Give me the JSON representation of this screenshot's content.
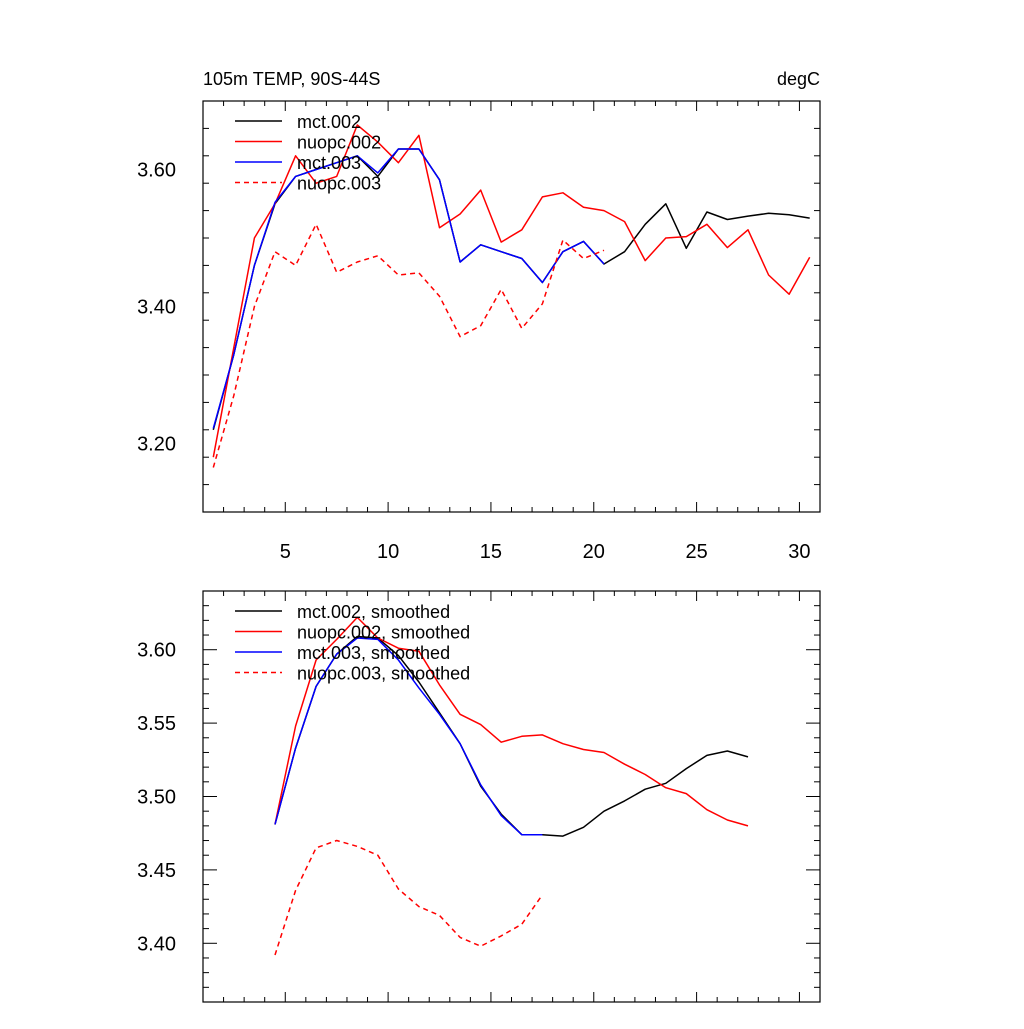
{
  "colors": {
    "mct_002": "#000000",
    "nuopc": "#ff0000",
    "mct_003": "#0000ff",
    "axis": "#000000"
  },
  "chart_data": [
    {
      "type": "line",
      "title_left": "105m TEMP, 90S-44S",
      "title_right": "degC",
      "xlim": [
        1,
        31
      ],
      "ylim": [
        3.1,
        3.7
      ],
      "xticks": [
        5,
        10,
        15,
        20,
        25,
        30
      ],
      "xtick_labels": [
        "5",
        "10",
        "15",
        "20",
        "25",
        "30"
      ],
      "yticks": [
        3.2,
        3.4,
        3.6
      ],
      "ytick_labels": [
        "3.20",
        "3.40",
        "3.60"
      ],
      "legend_position": "top-left",
      "series": [
        {
          "name": "mct.002",
          "color": "#000000",
          "dash": "solid",
          "x": [
            1.5,
            2.5,
            3.5,
            4.5,
            5.5,
            6.5,
            7.5,
            8.5,
            9.5,
            10.5,
            11.5,
            12.5,
            13.5,
            14.5,
            15.5,
            16.5,
            17.5,
            18.5,
            19.5,
            20.5,
            21.5,
            22.5,
            23.5,
            24.5,
            25.5,
            26.5,
            27.5,
            28.5,
            29.5,
            30.5
          ],
          "y": [
            3.22,
            3.33,
            3.46,
            3.55,
            3.59,
            3.6,
            3.61,
            3.62,
            3.59,
            3.63,
            3.63,
            3.585,
            3.465,
            3.49,
            3.48,
            3.47,
            3.435,
            3.48,
            3.495,
            3.462,
            3.48,
            3.52,
            3.55,
            3.485,
            3.538,
            3.527,
            3.532,
            3.536,
            3.534,
            3.529
          ]
        },
        {
          "name": "nuopc.002",
          "color": "#ff0000",
          "dash": "solid",
          "x": [
            1.5,
            2.5,
            3.5,
            4.5,
            5.5,
            6.5,
            7.5,
            8.5,
            9.5,
            10.5,
            11.5,
            12.5,
            13.5,
            14.5,
            15.5,
            16.5,
            17.5,
            18.5,
            19.5,
            20.5,
            21.5,
            22.5,
            23.5,
            24.5,
            25.5,
            26.5,
            27.5,
            28.5,
            29.5,
            30.5
          ],
          "y": [
            3.18,
            3.34,
            3.5,
            3.55,
            3.62,
            3.58,
            3.59,
            3.665,
            3.64,
            3.61,
            3.65,
            3.515,
            3.535,
            3.57,
            3.494,
            3.512,
            3.56,
            3.566,
            3.545,
            3.54,
            3.524,
            3.467,
            3.5,
            3.502,
            3.52,
            3.486,
            3.512,
            3.446,
            3.418,
            3.472
          ]
        },
        {
          "name": "mct.003",
          "color": "#0000ff",
          "dash": "solid",
          "x": [
            1.5,
            2.5,
            3.5,
            4.5,
            5.5,
            6.5,
            7.5,
            8.5,
            9.5,
            10.5,
            11.5,
            12.5,
            13.5,
            14.5,
            15.5,
            16.5,
            17.5,
            18.5,
            19.5,
            20.5
          ],
          "y": [
            3.222,
            3.33,
            3.46,
            3.552,
            3.59,
            3.6,
            3.61,
            3.62,
            3.595,
            3.63,
            3.63,
            3.585,
            3.465,
            3.49,
            3.48,
            3.47,
            3.435,
            3.48,
            3.495,
            3.462
          ]
        },
        {
          "name": "nuopc.003",
          "color": "#ff0000",
          "dash": "dashed",
          "x": [
            1.5,
            2.5,
            3.5,
            4.5,
            5.5,
            6.5,
            7.5,
            8.5,
            9.5,
            10.5,
            11.5,
            12.5,
            13.5,
            14.5,
            15.5,
            16.5,
            17.5,
            18.5,
            19.5,
            20.5
          ],
          "y": [
            3.165,
            3.27,
            3.4,
            3.48,
            3.46,
            3.52,
            3.45,
            3.465,
            3.474,
            3.446,
            3.449,
            3.415,
            3.356,
            3.372,
            3.425,
            3.368,
            3.404,
            3.497,
            3.47,
            3.482
          ]
        }
      ]
    },
    {
      "type": "line",
      "xlim": [
        1,
        31
      ],
      "ylim": [
        3.36,
        3.64
      ],
      "xticks": [
        5,
        10,
        15,
        20,
        25,
        30
      ],
      "yticks": [
        3.4,
        3.45,
        3.5,
        3.55,
        3.6
      ],
      "ytick_labels": [
        "3.40",
        "3.45",
        "3.50",
        "3.55",
        "3.60"
      ],
      "legend_position": "top-left",
      "series": [
        {
          "name": "mct.002, smoothed",
          "color": "#000000",
          "dash": "solid",
          "x": [
            4.5,
            5.5,
            6.5,
            7.5,
            8.5,
            9.5,
            10.5,
            11.5,
            12.5,
            13.5,
            14.5,
            15.5,
            16.5,
            17.5,
            18.5,
            19.5,
            20.5,
            21.5,
            22.5,
            23.5,
            24.5,
            25.5,
            26.5,
            27.5
          ],
          "y": [
            3.481,
            3.533,
            3.575,
            3.597,
            3.609,
            3.608,
            3.596,
            3.578,
            3.557,
            3.536,
            3.507,
            3.488,
            3.474,
            3.474,
            3.473,
            3.479,
            3.49,
            3.497,
            3.505,
            3.509,
            3.519,
            3.528,
            3.531,
            3.527
          ]
        },
        {
          "name": "nuopc.002, smoothed",
          "color": "#ff0000",
          "dash": "solid",
          "x": [
            4.5,
            5.5,
            6.5,
            7.5,
            8.5,
            9.5,
            10.5,
            11.5,
            12.5,
            13.5,
            14.5,
            15.5,
            16.5,
            17.5,
            18.5,
            19.5,
            20.5,
            21.5,
            22.5,
            23.5,
            24.5,
            25.5,
            26.5,
            27.5
          ],
          "y": [
            3.481,
            3.548,
            3.593,
            3.607,
            3.622,
            3.608,
            3.601,
            3.599,
            3.576,
            3.556,
            3.549,
            3.537,
            3.541,
            3.542,
            3.536,
            3.532,
            3.53,
            3.522,
            3.515,
            3.506,
            3.502,
            3.491,
            3.484,
            3.48
          ]
        },
        {
          "name": "mct.003, smoothed",
          "color": "#0000ff",
          "dash": "solid",
          "x": [
            4.5,
            5.5,
            6.5,
            7.5,
            8.5,
            9.5,
            10.5,
            11.5,
            12.5,
            13.5,
            14.5,
            15.5,
            16.5,
            17.5
          ],
          "y": [
            3.481,
            3.533,
            3.575,
            3.597,
            3.608,
            3.607,
            3.593,
            3.574,
            3.556,
            3.536,
            3.508,
            3.487,
            3.474,
            3.474
          ]
        },
        {
          "name": "nuopc.003, smoothed",
          "color": "#ff0000",
          "dash": "dashed",
          "x": [
            4.5,
            5.5,
            6.5,
            7.5,
            8.5,
            9.5,
            10.5,
            11.5,
            12.5,
            13.5,
            14.5,
            15.5,
            16.5,
            17.5
          ],
          "y": [
            3.392,
            3.436,
            3.465,
            3.47,
            3.466,
            3.46,
            3.437,
            3.425,
            3.419,
            3.404,
            3.398,
            3.405,
            3.413,
            3.433
          ]
        }
      ]
    }
  ]
}
